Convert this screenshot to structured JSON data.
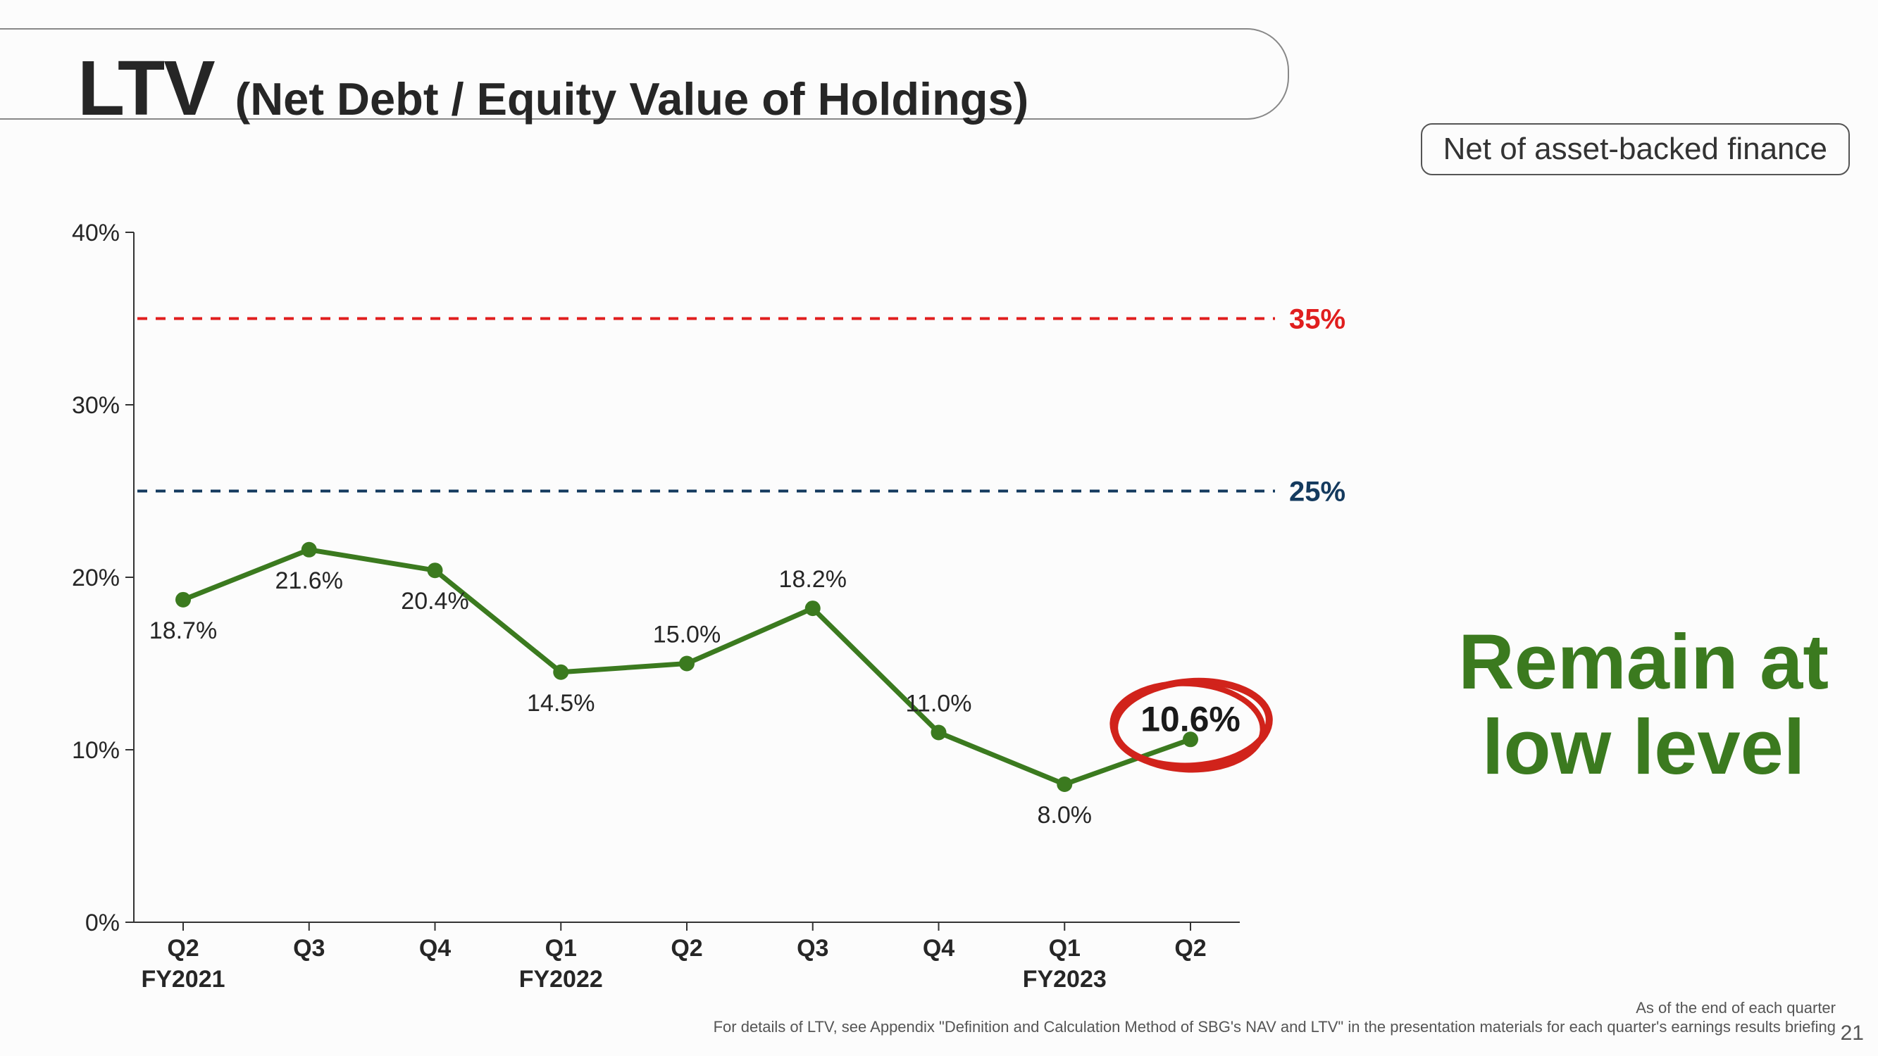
{
  "title": {
    "main": "LTV",
    "sub": "(Net Debt / Equity Value of Holdings)"
  },
  "net_box": "Net of asset-backed finance",
  "callout_line1": "Remain at",
  "callout_line2": "low level",
  "footnote1": "As of the end of each quarter",
  "footnote2": "For details of LTV, see Appendix \"Definition and Calculation Method of SBG's NAV and LTV\" in the presentation materials for each quarter's earnings results briefing",
  "page_number": "21",
  "chart": {
    "type": "line",
    "ylim": [
      0,
      40
    ],
    "ytick_step": 10,
    "y_suffix": "%",
    "x_labels_top": [
      "Q2",
      "Q3",
      "Q4",
      "Q1",
      "Q2",
      "Q3",
      "Q4",
      "Q1",
      "Q2"
    ],
    "x_labels_bottom": [
      "FY2021",
      "",
      "",
      "FY2022",
      "",
      "",
      "",
      "FY2023",
      ""
    ],
    "values": [
      18.7,
      21.6,
      20.4,
      14.5,
      15.0,
      18.2,
      11.0,
      8.0,
      10.6
    ],
    "point_labels": [
      "18.7%",
      "21.6%",
      "20.4%",
      "14.5%",
      "15.0%",
      "18.2%",
      "11.0%",
      "8.0%",
      "10.6%"
    ],
    "label_dy": [
      55,
      55,
      55,
      55,
      -30,
      -30,
      -30,
      55,
      0
    ],
    "reference_lines": [
      {
        "value": 35,
        "label": "35%",
        "color": "#e01e1e"
      },
      {
        "value": 25,
        "label": "25%",
        "color": "#143a5e"
      }
    ],
    "line_color": "#3b7a1f",
    "line_width": 7,
    "marker_radius": 11,
    "marker_color": "#3b7a1f",
    "axis_color": "#333333",
    "tick_font_size": 34,
    "label_font_size": 34,
    "point_label_font_size": 34,
    "ref_label_font_size": 40,
    "final_point_circle": {
      "rx": 110,
      "ry": 60,
      "stroke": "#d1231b",
      "stroke_width": 10
    }
  }
}
